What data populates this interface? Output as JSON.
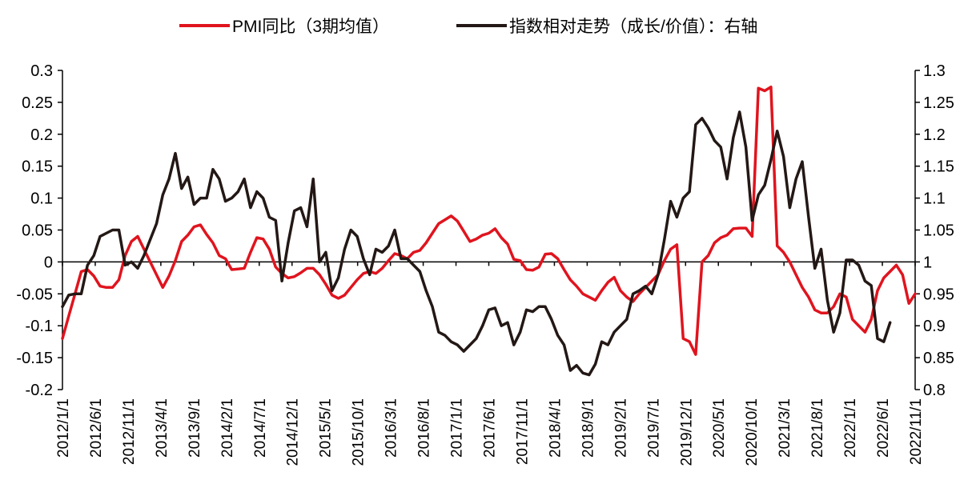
{
  "chart_data": {
    "type": "line",
    "title": "",
    "legend": {
      "position": "top",
      "entries": [
        "PMI同比（3期均值）",
        "指数相对走势（成长/价值）：右轴"
      ]
    },
    "colors": {
      "pmi": "#e0141e",
      "ratio": "#231815"
    },
    "x_ticks": [
      "2012/1/1",
      "2012/6/1",
      "2012/11/1",
      "2013/4/1",
      "2013/9/1",
      "2014/2/1",
      "2014/7/1",
      "2014/12/1",
      "2015/5/1",
      "2015/10/1",
      "2016/3/1",
      "2016/8/1",
      "2017/1/1",
      "2017/6/1",
      "2017/11/1",
      "2018/4/1",
      "2018/9/1",
      "2019/2/1",
      "2019/7/1",
      "2019/12/1",
      "2020/5/1",
      "2020/10/1",
      "2021/3/1",
      "2021/8/1",
      "2022/1/1",
      "2022/6/1",
      "2022/11/1"
    ],
    "y_left": {
      "min": -0.2,
      "max": 0.3,
      "ticks": [
        "0.3",
        "0.25",
        "0.2",
        "0.15",
        "0.1",
        "0.05",
        "0",
        "-0.05",
        "-0.1",
        "-0.15",
        "-0.2"
      ]
    },
    "y_right": {
      "min": 0.8,
      "max": 1.3,
      "ticks": [
        "1.3",
        "1.25",
        "1.2",
        "1.15",
        "1.1",
        "1.05",
        "1",
        "0.95",
        "0.9",
        "0.85",
        "0.8"
      ]
    },
    "series": [
      {
        "name": "PMI同比（3期均值）",
        "axis": "left",
        "values": [
          -0.12,
          -0.085,
          -0.05,
          -0.015,
          -0.012,
          -0.022,
          -0.038,
          -0.04,
          -0.04,
          -0.028,
          0.01,
          0.032,
          0.04,
          0.02,
          0,
          -0.02,
          -0.04,
          -0.022,
          0.002,
          0.032,
          0.042,
          0.055,
          0.058,
          0.043,
          0.03,
          0.01,
          0.005,
          -0.012,
          -0.011,
          -0.01,
          0.015,
          0.038,
          0.036,
          0.02,
          -0.008,
          -0.018,
          -0.025,
          -0.023,
          -0.017,
          -0.01,
          -0.01,
          -0.02,
          -0.035,
          -0.052,
          -0.057,
          -0.052,
          -0.04,
          -0.028,
          -0.018,
          -0.015,
          -0.018,
          -0.01,
          0.002,
          0.013,
          0.01,
          0.005,
          0.015,
          0.018,
          0.03,
          0.045,
          0.06,
          0.066,
          0.072,
          0.064,
          0.048,
          0.032,
          0.036,
          0.042,
          0.045,
          0.052,
          0.038,
          0.028,
          0.004,
          0.002,
          -0.012,
          -0.013,
          -0.008,
          0.012,
          0.013,
          0.005,
          -0.012,
          -0.028,
          -0.038,
          -0.05,
          -0.055,
          -0.06,
          -0.045,
          -0.032,
          -0.024,
          -0.045,
          -0.055,
          -0.062,
          -0.05,
          -0.04,
          -0.03,
          -0.02,
          0.002,
          0.02,
          0.027,
          -0.12,
          -0.125,
          -0.145,
          0,
          0.01,
          0.03,
          0.038,
          0.042,
          0.052,
          0.053,
          0.053,
          0.04,
          0.272,
          0.268,
          0.274,
          0.025,
          0.015,
          0,
          -0.02,
          -0.04,
          -0.055,
          -0.075,
          -0.08,
          -0.08,
          -0.07,
          -0.05,
          -0.055,
          -0.09,
          -0.1,
          -0.11,
          -0.09,
          -0.045,
          -0.025,
          -0.015,
          -0.005,
          -0.02,
          -0.065,
          -0.05
        ]
      },
      {
        "name": "指数相对走势（成长/价值）：右轴",
        "axis": "right",
        "values": [
          0.93,
          0.948,
          0.95,
          0.95,
          0.995,
          1.01,
          1.04,
          1.045,
          1.05,
          1.05,
          0.995,
          1,
          0.99,
          1.01,
          1.035,
          1.06,
          1.105,
          1.13,
          1.17,
          1.115,
          1.133,
          1.09,
          1.1,
          1.1,
          1.145,
          1.13,
          1.095,
          1.1,
          1.11,
          1.13,
          1.085,
          1.11,
          1.1,
          1.07,
          1.065,
          0.97,
          1.03,
          1.08,
          1.085,
          1.055,
          1.13,
          1,
          1.015,
          0.955,
          0.975,
          1.02,
          1.05,
          1.04,
          1.005,
          0.98,
          1.02,
          1.015,
          1.025,
          1.05,
          1.005,
          1.005,
          0.995,
          0.985,
          0.955,
          0.93,
          0.89,
          0.885,
          0.875,
          0.87,
          0.86,
          0.87,
          0.88,
          0.9,
          0.925,
          0.928,
          0.9,
          0.905,
          0.87,
          0.89,
          0.925,
          0.922,
          0.93,
          0.93,
          0.91,
          0.885,
          0.87,
          0.83,
          0.838,
          0.826,
          0.823,
          0.84,
          0.875,
          0.87,
          0.89,
          0.9,
          0.91,
          0.95,
          0.955,
          0.962,
          0.95,
          0.98,
          1.035,
          1.095,
          1.07,
          1.1,
          1.11,
          1.215,
          1.225,
          1.21,
          1.19,
          1.18,
          1.13,
          1.195,
          1.235,
          1.18,
          1.065,
          1.105,
          1.12,
          1.16,
          1.205,
          1.165,
          1.085,
          1.13,
          1.157,
          1.07,
          0.99,
          1.02,
          0.94,
          0.89,
          0.92,
          1.003,
          1.003,
          0.995,
          0.97,
          0.963,
          0.88,
          0.875,
          0.905
        ]
      }
    ]
  }
}
